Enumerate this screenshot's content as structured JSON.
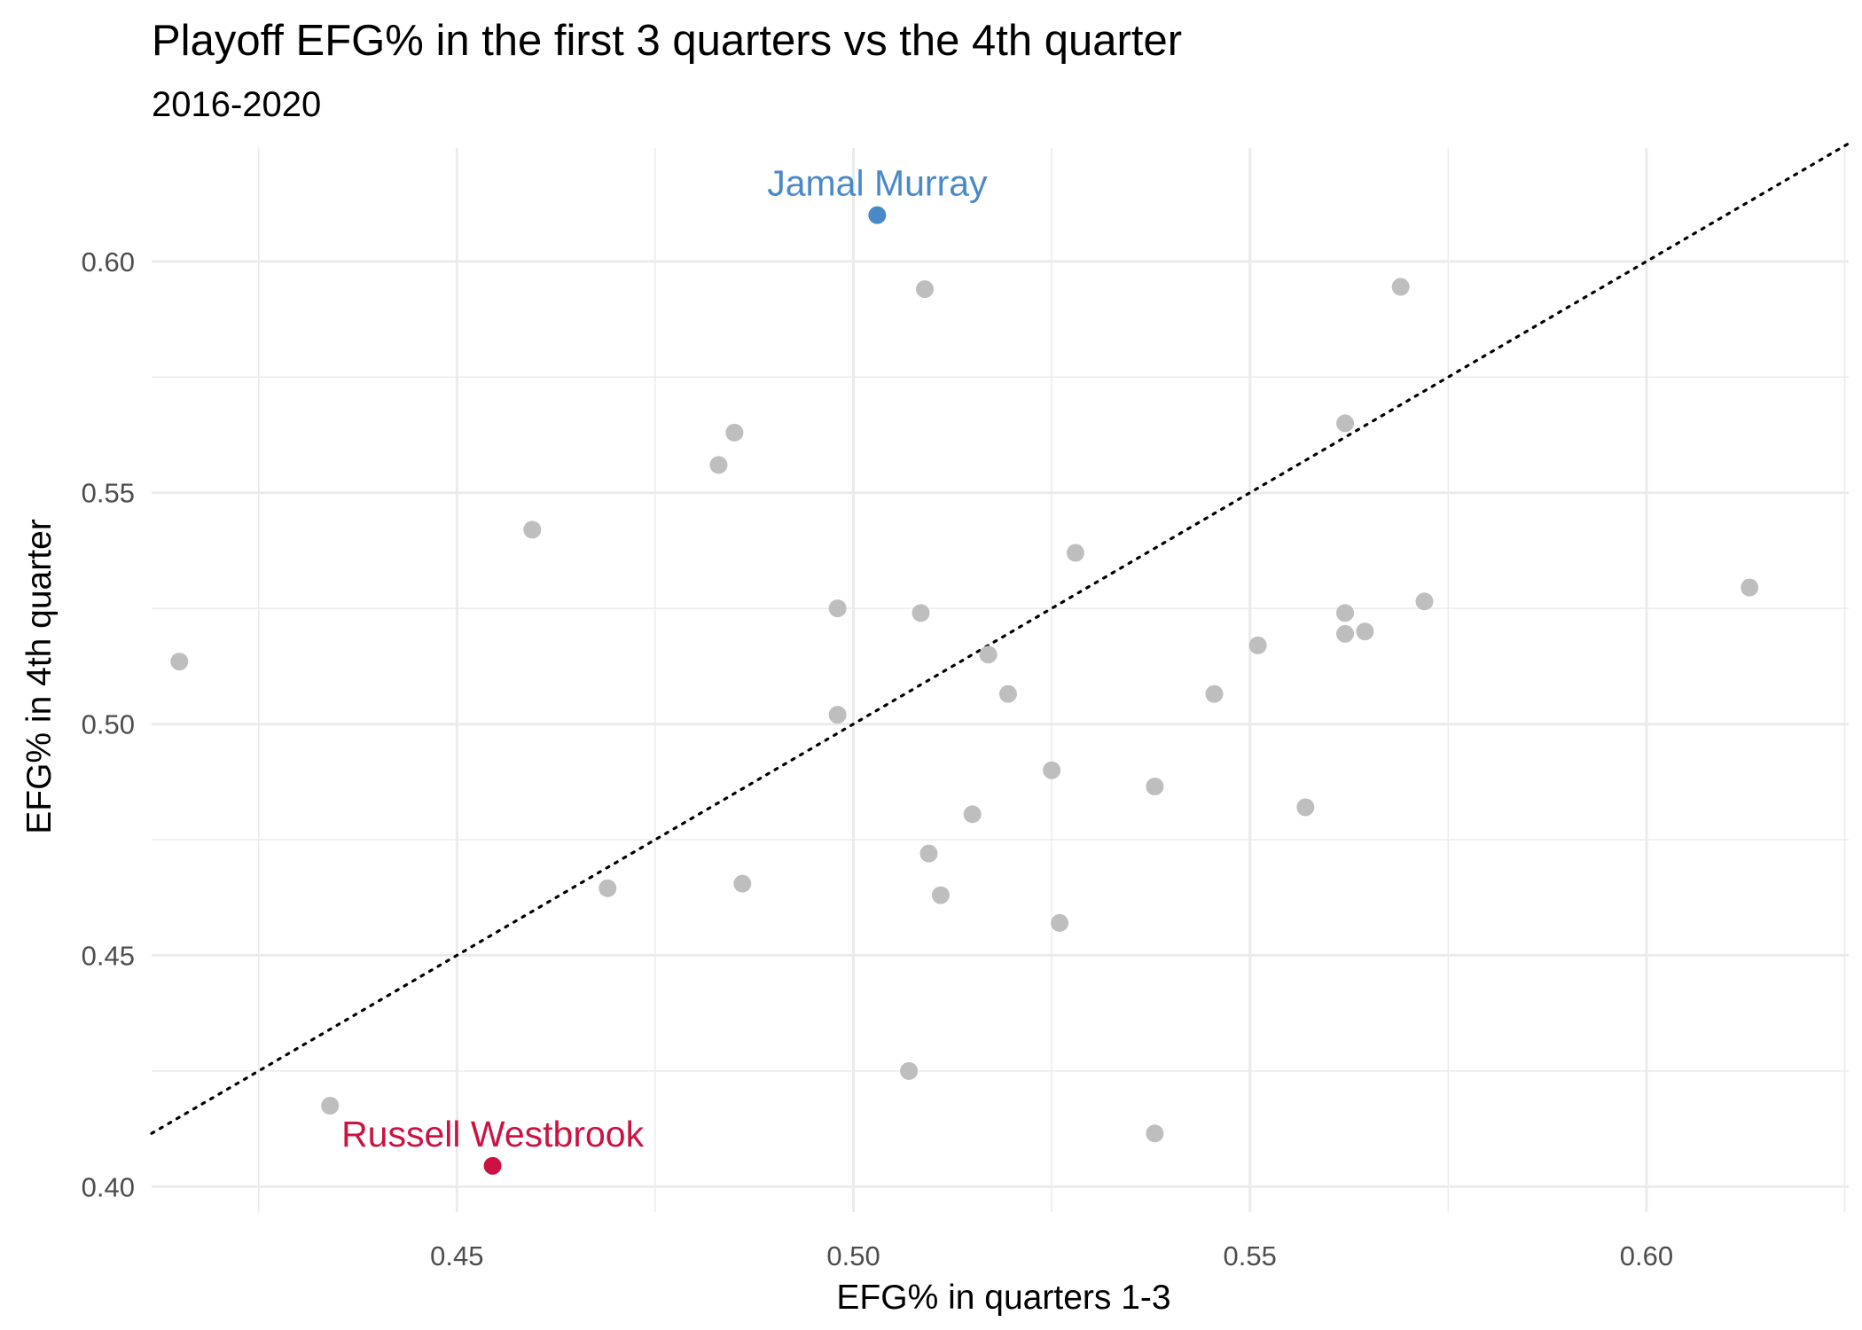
{
  "chart_data": {
    "type": "scatter",
    "title": "Playoff EFG% in the first 3 quarters vs the 4th quarter",
    "subtitle": "2016-2020",
    "xlabel": "EFG% in quarters 1-3",
    "ylabel": "EFG% in 4th quarter",
    "xlim": [
      0.4115,
      0.6255
    ],
    "ylim": [
      0.3945,
      0.6245
    ],
    "x_ticks": [
      0.45,
      0.5,
      0.55,
      0.6
    ],
    "x_tick_labels": [
      "0.45",
      "0.50",
      "0.55",
      "0.60"
    ],
    "y_ticks": [
      0.4,
      0.45,
      0.5,
      0.55,
      0.6
    ],
    "y_tick_labels": [
      "0.40",
      "0.45",
      "0.50",
      "0.55",
      "0.60"
    ],
    "grid": true,
    "reference_line": {
      "type": "y=x",
      "style": "dotted"
    },
    "colors": {
      "default_point": "#bebebe",
      "murray": "#4a89c8",
      "westbrook": "#cc1242"
    },
    "points": [
      {
        "x": 0.503,
        "y": 0.61,
        "label": "Jamal Murray",
        "highlight": "murray"
      },
      {
        "x": 0.4545,
        "y": 0.4045,
        "label": "Russell Westbrook",
        "highlight": "westbrook"
      },
      {
        "x": 0.509,
        "y": 0.594
      },
      {
        "x": 0.569,
        "y": 0.5945
      },
      {
        "x": 0.562,
        "y": 0.565
      },
      {
        "x": 0.485,
        "y": 0.563
      },
      {
        "x": 0.483,
        "y": 0.556
      },
      {
        "x": 0.4595,
        "y": 0.542
      },
      {
        "x": 0.528,
        "y": 0.537
      },
      {
        "x": 0.613,
        "y": 0.5295
      },
      {
        "x": 0.572,
        "y": 0.5265
      },
      {
        "x": 0.498,
        "y": 0.525
      },
      {
        "x": 0.5085,
        "y": 0.524
      },
      {
        "x": 0.562,
        "y": 0.524
      },
      {
        "x": 0.5645,
        "y": 0.52
      },
      {
        "x": 0.562,
        "y": 0.5195
      },
      {
        "x": 0.551,
        "y": 0.517
      },
      {
        "x": 0.517,
        "y": 0.515
      },
      {
        "x": 0.415,
        "y": 0.5135
      },
      {
        "x": 0.5195,
        "y": 0.5065
      },
      {
        "x": 0.5455,
        "y": 0.5065
      },
      {
        "x": 0.498,
        "y": 0.502
      },
      {
        "x": 0.525,
        "y": 0.49
      },
      {
        "x": 0.538,
        "y": 0.4865
      },
      {
        "x": 0.557,
        "y": 0.482
      },
      {
        "x": 0.515,
        "y": 0.4805
      },
      {
        "x": 0.5095,
        "y": 0.472
      },
      {
        "x": 0.486,
        "y": 0.4655
      },
      {
        "x": 0.469,
        "y": 0.4645
      },
      {
        "x": 0.511,
        "y": 0.463
      },
      {
        "x": 0.526,
        "y": 0.457
      },
      {
        "x": 0.507,
        "y": 0.425
      },
      {
        "x": 0.434,
        "y": 0.4175
      },
      {
        "x": 0.538,
        "y": 0.4115
      }
    ]
  }
}
